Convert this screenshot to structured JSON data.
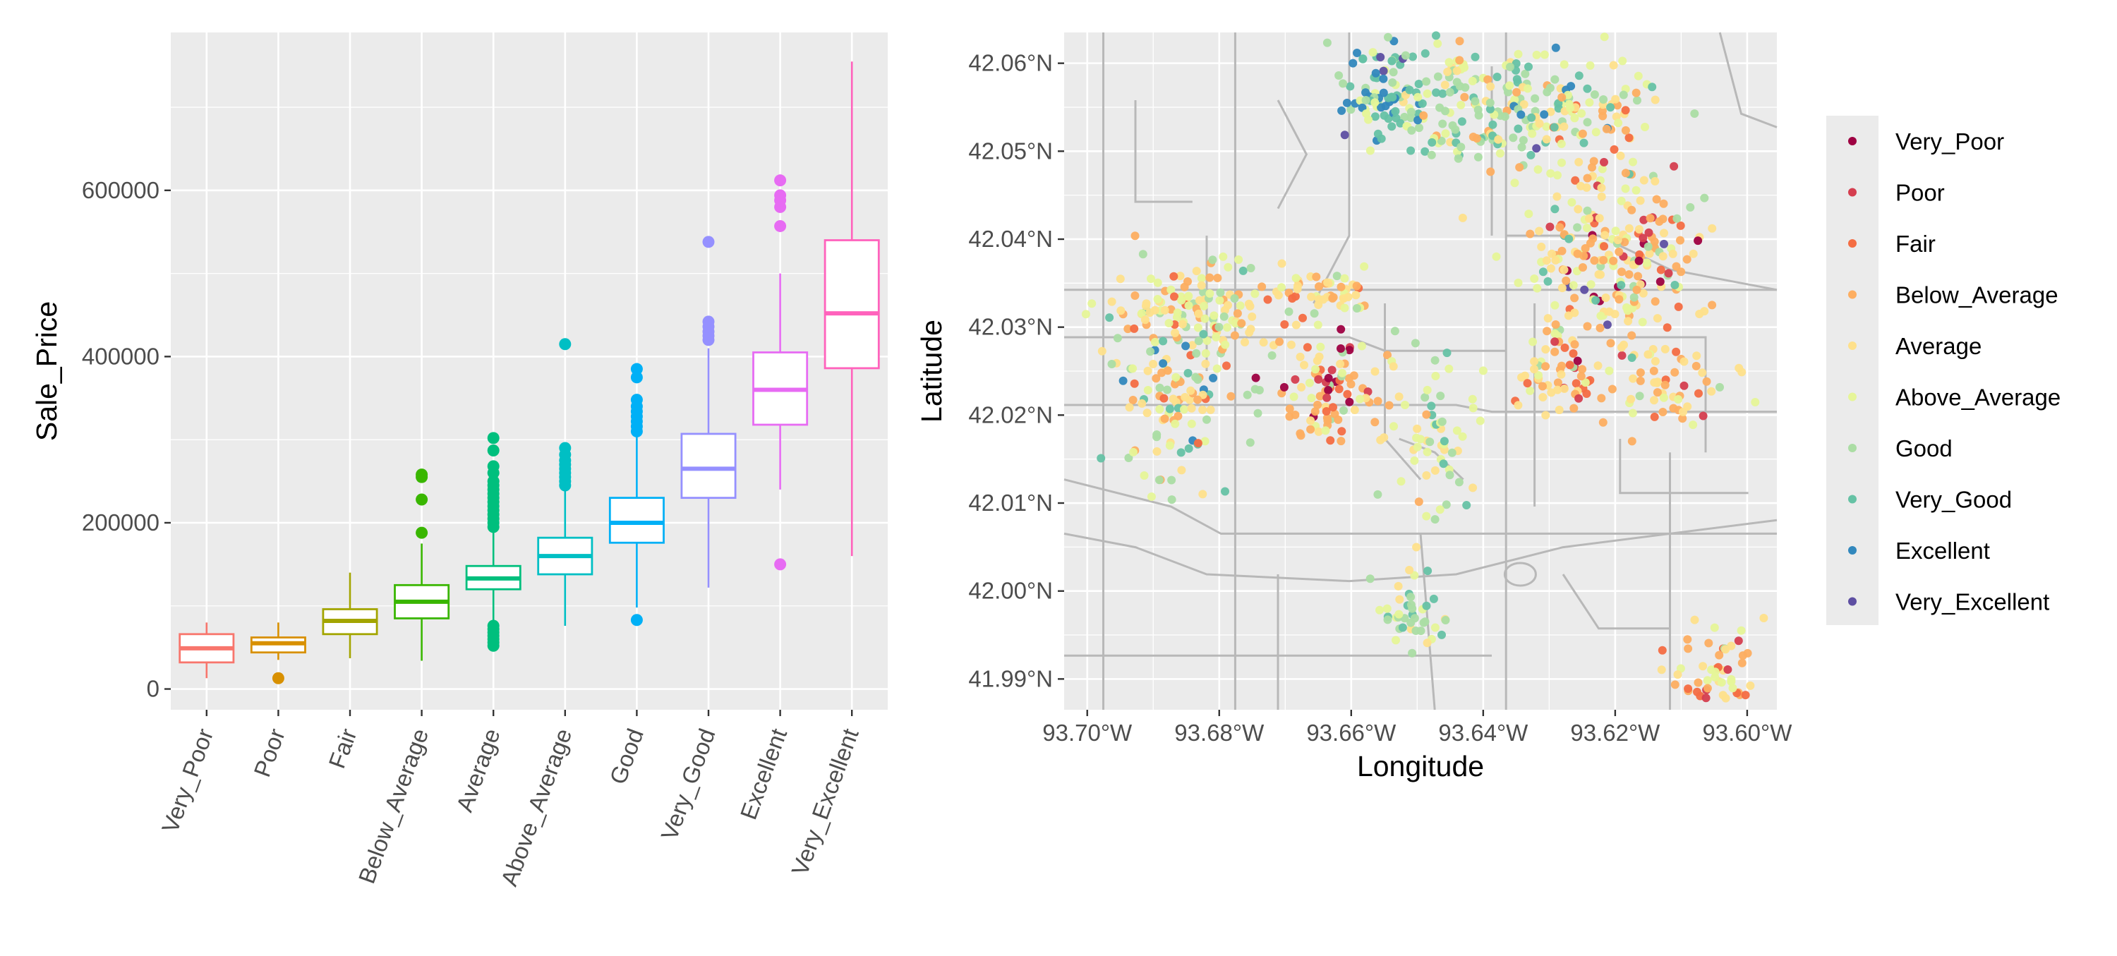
{
  "chart_data": [
    {
      "type": "box",
      "title": "",
      "xlabel": "",
      "ylabel": "Sale_Price",
      "ylim": [
        -25000,
        790000
      ],
      "y_ticks": [
        0,
        200000,
        400000,
        600000
      ],
      "y_tick_labels": [
        "0",
        "200000",
        "400000",
        "600000"
      ],
      "grid": true,
      "categories": [
        "Very_Poor",
        "Poor",
        "Fair",
        "Below_Average",
        "Average",
        "Above_Average",
        "Good",
        "Very_Good",
        "Excellent",
        "Very_Excellent"
      ],
      "colors": [
        "#F8766D",
        "#D89000",
        "#A3A500",
        "#39B600",
        "#00BF7D",
        "#00BFC4",
        "#00B0F6",
        "#9590FF",
        "#E76BF3",
        "#FF62BC"
      ],
      "boxes": [
        {
          "category": "Very_Poor",
          "whisker_low": 13000,
          "q1": 32000,
          "median": 49000,
          "q3": 66000,
          "whisker_high": 80000,
          "outliers": []
        },
        {
          "category": "Poor",
          "whisker_low": 35000,
          "q1": 44000,
          "median": 55000,
          "q3": 62000,
          "whisker_high": 80000,
          "outliers": [
            13000
          ]
        },
        {
          "category": "Fair",
          "whisker_low": 37000,
          "q1": 66000,
          "median": 82000,
          "q3": 96000,
          "whisker_high": 140000,
          "outliers": []
        },
        {
          "category": "Below_Average",
          "whisker_low": 34000,
          "q1": 85000,
          "median": 105000,
          "q3": 125000,
          "whisker_high": 175000,
          "outliers": [
            188000,
            228000,
            255000,
            258000
          ]
        },
        {
          "category": "Average",
          "whisker_low": 80000,
          "q1": 120000,
          "median": 133000,
          "q3": 148000,
          "whisker_high": 190000,
          "outliers": [
            52000,
            56000,
            60000,
            64000,
            68000,
            72000,
            76000,
            195000,
            200000,
            205000,
            210000,
            215000,
            220000,
            225000,
            230000,
            235000,
            240000,
            245000,
            250000,
            260000,
            268000,
            287000,
            302000
          ]
        },
        {
          "category": "Above_Average",
          "whisker_low": 76000,
          "q1": 138000,
          "median": 160000,
          "q3": 182000,
          "whisker_high": 242000,
          "outliers": [
            245000,
            250000,
            255000,
            260000,
            265000,
            270000,
            275000,
            282000,
            290000,
            415000
          ]
        },
        {
          "category": "Good",
          "whisker_low": 98000,
          "q1": 176000,
          "median": 200000,
          "q3": 230000,
          "whisker_high": 305000,
          "outliers": [
            83000,
            310000,
            316000,
            322000,
            328000,
            334000,
            340000,
            348000,
            375000,
            385000
          ]
        },
        {
          "category": "Very_Good",
          "whisker_low": 122000,
          "q1": 230000,
          "median": 265000,
          "q3": 307000,
          "whisker_high": 410000,
          "outliers": [
            420000,
            425000,
            430000,
            436000,
            442000,
            538000
          ]
        },
        {
          "category": "Excellent",
          "whisker_low": 240000,
          "q1": 318000,
          "median": 360000,
          "q3": 405000,
          "whisker_high": 500000,
          "outliers": [
            150000,
            557000,
            580000,
            588000,
            594000,
            612000
          ]
        },
        {
          "category": "Very_Excellent",
          "whisker_low": 160000,
          "q1": 386000,
          "median": 452000,
          "q3": 540000,
          "whisker_high": 755000,
          "outliers": []
        }
      ]
    },
    {
      "type": "scatter",
      "title": "",
      "xlabel": "Longitude",
      "ylabel": "Latitude",
      "xlim": [
        -93.7035,
        -93.5955
      ],
      "ylim": [
        41.9865,
        42.0635
      ],
      "x_ticks": [
        -93.7,
        -93.68,
        -93.66,
        -93.64,
        -93.62,
        -93.6
      ],
      "x_tick_labels": [
        "93.70°W",
        "93.68°W",
        "93.66°W",
        "93.64°W",
        "93.62°W",
        "93.60°W"
      ],
      "y_ticks": [
        41.99,
        42.0,
        42.01,
        42.02,
        42.03,
        42.04,
        42.05,
        42.06
      ],
      "y_tick_labels": [
        "41.99°N",
        "42.00°N",
        "42.01°N",
        "42.02°N",
        "42.03°N",
        "42.04°N",
        "42.05°N",
        "42.06°N"
      ],
      "grid": true,
      "background": "street-map",
      "legend_placement": "right",
      "legend": [
        {
          "name": "Very_Poor",
          "color": "#9E0142"
        },
        {
          "name": "Poor",
          "color": "#D53E4F"
        },
        {
          "name": "Fair",
          "color": "#F46D43"
        },
        {
          "name": "Below_Average",
          "color": "#FDAE61"
        },
        {
          "name": "Average",
          "color": "#FEE08B"
        },
        {
          "name": "Above_Average",
          "color": "#E6F598"
        },
        {
          "name": "Good",
          "color": "#ABDDA4"
        },
        {
          "name": "Very_Good",
          "color": "#66C2A5"
        },
        {
          "name": "Excellent",
          "color": "#3288BD"
        },
        {
          "name": "Very_Excellent",
          "color": "#5E4FA2"
        }
      ],
      "clusters": [
        {
          "center": [
            -93.655,
            42.057
          ],
          "spread": [
            0.0035,
            0.0035
          ],
          "n": 90,
          "weights": [
            0,
            0,
            0,
            0,
            1,
            2,
            4,
            6,
            3,
            1
          ]
        },
        {
          "center": [
            -93.642,
            42.055
          ],
          "spread": [
            0.005,
            0.0045
          ],
          "n": 120,
          "weights": [
            0,
            0,
            0,
            1,
            3,
            5,
            5,
            4,
            1,
            0
          ]
        },
        {
          "center": [
            -93.627,
            42.055
          ],
          "spread": [
            0.006,
            0.004
          ],
          "n": 110,
          "weights": [
            0,
            0,
            1,
            2,
            5,
            6,
            3,
            1,
            1,
            0
          ]
        },
        {
          "center": [
            -93.62,
            42.038
          ],
          "spread": [
            0.007,
            0.007
          ],
          "n": 240,
          "weights": [
            1,
            1,
            2,
            6,
            8,
            5,
            2,
            1,
            0,
            1
          ]
        },
        {
          "center": [
            -93.628,
            42.025
          ],
          "spread": [
            0.003,
            0.0035
          ],
          "n": 50,
          "weights": [
            1,
            1,
            2,
            5,
            5,
            2,
            1,
            0,
            0,
            0
          ]
        },
        {
          "center": [
            -93.612,
            42.023
          ],
          "spread": [
            0.005,
            0.003
          ],
          "n": 50,
          "weights": [
            0,
            1,
            2,
            5,
            5,
            2,
            1,
            0,
            0,
            0
          ]
        },
        {
          "center": [
            -93.682,
            42.0325
          ],
          "spread": [
            0.007,
            0.0035
          ],
          "n": 130,
          "weights": [
            0,
            0,
            1,
            4,
            6,
            6,
            2,
            1,
            0,
            0
          ]
        },
        {
          "center": [
            -93.6875,
            42.022
          ],
          "spread": [
            0.0045,
            0.0055
          ],
          "n": 110,
          "weights": [
            0,
            0,
            1,
            4,
            4,
            3,
            4,
            3,
            1,
            0
          ]
        },
        {
          "center": [
            -93.664,
            42.023
          ],
          "spread": [
            0.0045,
            0.004
          ],
          "n": 90,
          "weights": [
            1,
            1,
            2,
            6,
            4,
            2,
            1,
            0,
            0,
            0
          ]
        },
        {
          "center": [
            -93.648,
            42.017
          ],
          "spread": [
            0.004,
            0.005
          ],
          "n": 60,
          "weights": [
            0,
            0,
            0,
            1,
            3,
            5,
            4,
            1,
            0,
            0
          ]
        },
        {
          "center": [
            -93.651,
            41.997
          ],
          "spread": [
            0.0025,
            0.003
          ],
          "n": 40,
          "weights": [
            0,
            0,
            0,
            0,
            3,
            4,
            3,
            3,
            0,
            0
          ]
        },
        {
          "center": [
            -93.605,
            41.992
          ],
          "spread": [
            0.003,
            0.003
          ],
          "n": 50,
          "weights": [
            0,
            1,
            2,
            5,
            5,
            3,
            1,
            0,
            0,
            0
          ]
        },
        {
          "center": [
            -93.662,
            42.034
          ],
          "spread": [
            0.004,
            0.002
          ],
          "n": 40,
          "weights": [
            0,
            0,
            1,
            3,
            5,
            4,
            1,
            0,
            0,
            0
          ]
        }
      ]
    }
  ]
}
